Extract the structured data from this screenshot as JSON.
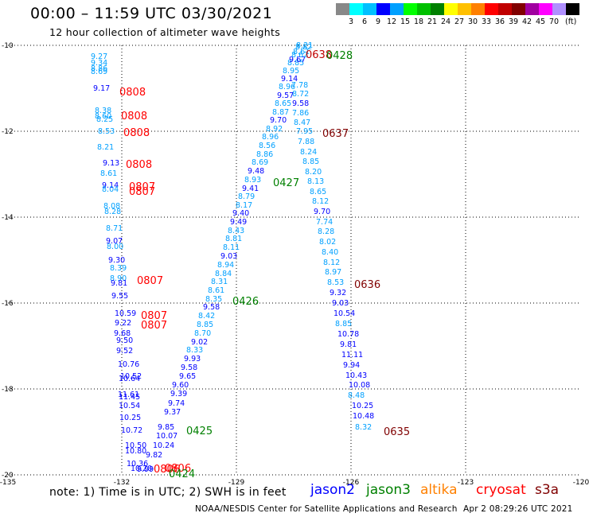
{
  "header": {
    "title": "00:00 – 11:59 UTC 03/30/2021",
    "subtitle": "12 hour collection of altimeter wave heights"
  },
  "colorbar": {
    "unit": "(ft)",
    "colors": [
      "#888888",
      "#00ffff",
      "#00c0ff",
      "#0000ff",
      "#00a0ff",
      "#00ff00",
      "#00c000",
      "#008000",
      "#ffff00",
      "#ffc000",
      "#ff8000",
      "#ff0000",
      "#c00000",
      "#800000",
      "#a000a0",
      "#ff00ff",
      "#b090ff",
      "#000000"
    ],
    "ticks": [
      "3",
      "6",
      "9",
      "12",
      "15",
      "18",
      "21",
      "24",
      "27",
      "30",
      "33",
      "36",
      "39",
      "42",
      "45",
      "70"
    ]
  },
  "map": {
    "lat_labels": [
      "-10",
      "-12",
      "-14",
      "-16",
      "-18",
      "-20"
    ],
    "lon_labels": [
      "-135",
      "-132",
      "-129",
      "-126",
      "-123",
      "-120"
    ]
  },
  "observations": [
    {
      "t": "9.27",
      "c": "#00a0ff"
    },
    {
      "t": "9.34",
      "c": "#00a0ff"
    },
    {
      "t": "8.86",
      "c": "#00a0ff"
    },
    {
      "t": "8.69",
      "c": "#00a0ff"
    },
    {
      "t": "9.17",
      "c": "#0000ff"
    },
    {
      "t": "8.38",
      "c": "#00a0ff"
    },
    {
      "t": "8.60",
      "c": "#00a0ff"
    },
    {
      "t": "8.25",
      "c": "#00a0ff"
    },
    {
      "t": "8.53",
      "c": "#00a0ff"
    },
    {
      "t": "8.21",
      "c": "#00a0ff"
    },
    {
      "t": "9.13",
      "c": "#0000ff"
    },
    {
      "t": "8.61",
      "c": "#00a0ff"
    },
    {
      "t": "9.14",
      "c": "#0000ff"
    },
    {
      "t": "8.04",
      "c": "#00a0ff"
    },
    {
      "t": "8.08",
      "c": "#00a0ff"
    },
    {
      "t": "8.28",
      "c": "#00a0ff"
    },
    {
      "t": "8.71",
      "c": "#00a0ff"
    },
    {
      "t": "9.07",
      "c": "#0000ff"
    },
    {
      "t": "8.00",
      "c": "#00a0ff"
    },
    {
      "t": "9.30",
      "c": "#0000ff"
    },
    {
      "t": "8.39",
      "c": "#00a0ff"
    },
    {
      "t": "8.90",
      "c": "#00a0ff"
    },
    {
      "t": "9.81",
      "c": "#0000ff"
    },
    {
      "t": "9.55",
      "c": "#0000ff"
    },
    {
      "t": "10.59",
      "c": "#0000ff"
    },
    {
      "t": "9.22",
      "c": "#0000ff"
    },
    {
      "t": "9.68",
      "c": "#0000ff"
    },
    {
      "t": "9.50",
      "c": "#0000ff"
    },
    {
      "t": "9.52",
      "c": "#0000ff"
    },
    {
      "t": "10.76",
      "c": "#0000ff"
    },
    {
      "t": "10.52",
      "c": "#0000ff"
    },
    {
      "t": "10.64",
      "c": "#0000ff"
    },
    {
      "t": "11.61",
      "c": "#0000ff"
    },
    {
      "t": "11.45",
      "c": "#0000ff"
    },
    {
      "t": "10.54",
      "c": "#0000ff"
    },
    {
      "t": "10.25",
      "c": "#0000ff"
    },
    {
      "t": "10.72",
      "c": "#0000ff"
    },
    {
      "t": "10.50",
      "c": "#0000ff"
    },
    {
      "t": "10.80",
      "c": "#0000ff"
    },
    {
      "t": "10.36",
      "c": "#0000ff"
    },
    {
      "t": "10.20",
      "c": "#0000ff"
    },
    {
      "t": "9.99",
      "c": "#0000ff"
    },
    {
      "t": "9.82",
      "c": "#0000ff"
    },
    {
      "t": "10.24",
      "c": "#0000ff"
    },
    {
      "t": "10.07",
      "c": "#0000ff"
    },
    {
      "t": "9.85",
      "c": "#0000ff"
    },
    {
      "t": "9.37",
      "c": "#0000ff"
    },
    {
      "t": "9.74",
      "c": "#0000ff"
    },
    {
      "t": "9.39",
      "c": "#0000ff"
    },
    {
      "t": "9.60",
      "c": "#0000ff"
    },
    {
      "t": "9.65",
      "c": "#0000ff"
    },
    {
      "t": "9.58",
      "c": "#0000ff"
    },
    {
      "t": "9.93",
      "c": "#0000ff"
    },
    {
      "t": "8.33",
      "c": "#00a0ff"
    },
    {
      "t": "9.02",
      "c": "#0000ff"
    },
    {
      "t": "8.70",
      "c": "#00a0ff"
    },
    {
      "t": "8.85",
      "c": "#00a0ff"
    },
    {
      "t": "8.42",
      "c": "#00a0ff"
    },
    {
      "t": "9.58",
      "c": "#0000ff"
    },
    {
      "t": "8.35",
      "c": "#00a0ff"
    },
    {
      "t": "8.61",
      "c": "#00a0ff"
    },
    {
      "t": "8.31",
      "c": "#00a0ff"
    },
    {
      "t": "8.84",
      "c": "#00a0ff"
    },
    {
      "t": "8.94",
      "c": "#00a0ff"
    },
    {
      "t": "9.03",
      "c": "#0000ff"
    },
    {
      "t": "8.11",
      "c": "#00a0ff"
    },
    {
      "t": "8.81",
      "c": "#00a0ff"
    },
    {
      "t": "8.43",
      "c": "#00a0ff"
    },
    {
      "t": "9.49",
      "c": "#0000ff"
    },
    {
      "t": "9.40",
      "c": "#0000ff"
    },
    {
      "t": "8.17",
      "c": "#00a0ff"
    },
    {
      "t": "8.79",
      "c": "#00a0ff"
    },
    {
      "t": "9.41",
      "c": "#0000ff"
    },
    {
      "t": "8.93",
      "c": "#00a0ff"
    },
    {
      "t": "9.48",
      "c": "#0000ff"
    },
    {
      "t": "8.69",
      "c": "#00a0ff"
    },
    {
      "t": "8.86",
      "c": "#00a0ff"
    },
    {
      "t": "8.56",
      "c": "#00a0ff"
    },
    {
      "t": "8.96",
      "c": "#00a0ff"
    },
    {
      "t": "8.92",
      "c": "#00a0ff"
    },
    {
      "t": "9.70",
      "c": "#0000ff"
    },
    {
      "t": "8.87",
      "c": "#00a0ff"
    },
    {
      "t": "8.65",
      "c": "#00a0ff"
    },
    {
      "t": "9.57",
      "c": "#0000ff"
    },
    {
      "t": "8.96",
      "c": "#00a0ff"
    },
    {
      "t": "9.14",
      "c": "#0000ff"
    },
    {
      "t": "8.95",
      "c": "#00a0ff"
    },
    {
      "t": "8.85",
      "c": "#00a0ff"
    },
    {
      "t": "9.67",
      "c": "#0000ff"
    },
    {
      "t": "8.62",
      "c": "#00a0ff"
    },
    {
      "t": "8.61",
      "c": "#00a0ff"
    },
    {
      "t": "8.82",
      "c": "#00a0ff"
    },
    {
      "t": "8.21",
      "c": "#00a0ff"
    },
    {
      "t": "7.78",
      "c": "#00a0ff"
    },
    {
      "t": "8.72",
      "c": "#00a0ff"
    },
    {
      "t": "9.58",
      "c": "#0000ff"
    },
    {
      "t": "7.86",
      "c": "#00a0ff"
    },
    {
      "t": "8.47",
      "c": "#00a0ff"
    },
    {
      "t": "7.95",
      "c": "#00a0ff"
    },
    {
      "t": "7.88",
      "c": "#00a0ff"
    },
    {
      "t": "8.24",
      "c": "#00a0ff"
    },
    {
      "t": "8.85",
      "c": "#00a0ff"
    },
    {
      "t": "8.20",
      "c": "#00a0ff"
    },
    {
      "t": "8.13",
      "c": "#00a0ff"
    },
    {
      "t": "8.65",
      "c": "#00a0ff"
    },
    {
      "t": "8.12",
      "c": "#00a0ff"
    },
    {
      "t": "9.70",
      "c": "#0000ff"
    },
    {
      "t": "7.74",
      "c": "#00a0ff"
    },
    {
      "t": "8.28",
      "c": "#00a0ff"
    },
    {
      "t": "8.02",
      "c": "#00a0ff"
    },
    {
      "t": "8.40",
      "c": "#00a0ff"
    },
    {
      "t": "8.12",
      "c": "#00a0ff"
    },
    {
      "t": "8.97",
      "c": "#00a0ff"
    },
    {
      "t": "8.53",
      "c": "#00a0ff"
    },
    {
      "t": "9.32",
      "c": "#0000ff"
    },
    {
      "t": "9.03",
      "c": "#0000ff"
    },
    {
      "t": "10.54",
      "c": "#0000ff"
    },
    {
      "t": "8.85",
      "c": "#00a0ff"
    },
    {
      "t": "10.78",
      "c": "#0000ff"
    },
    {
      "t": "9.81",
      "c": "#0000ff"
    },
    {
      "t": "11.11",
      "c": "#0000ff"
    },
    {
      "t": "9.94",
      "c": "#0000ff"
    },
    {
      "t": "10.43",
      "c": "#0000ff"
    },
    {
      "t": "10.08",
      "c": "#0000ff"
    },
    {
      "t": "8.48",
      "c": "#00a0ff"
    },
    {
      "t": "10.25",
      "c": "#0000ff"
    },
    {
      "t": "10.48",
      "c": "#0000ff"
    },
    {
      "t": "8.32",
      "c": "#00a0ff"
    }
  ],
  "pass_times": [
    {
      "t": "0638",
      "c": "#c00000"
    },
    {
      "t": "0428",
      "c": "#008000"
    },
    {
      "t": "0808",
      "c": "#ff0000"
    },
    {
      "t": "0808",
      "c": "#ff0000"
    },
    {
      "t": "0808",
      "c": "#ff0000"
    },
    {
      "t": "0637",
      "c": "#800000"
    },
    {
      "t": "0808",
      "c": "#ff0000"
    },
    {
      "t": "0807",
      "c": "#ff0000"
    },
    {
      "t": "0807",
      "c": "#ff0000"
    },
    {
      "t": "0427",
      "c": "#008000"
    },
    {
      "t": "0807",
      "c": "#ff0000"
    },
    {
      "t": "0636",
      "c": "#800000"
    },
    {
      "t": "0426",
      "c": "#008000"
    },
    {
      "t": "0807",
      "c": "#ff0000"
    },
    {
      "t": "0807",
      "c": "#ff0000"
    },
    {
      "t": "0425",
      "c": "#008000"
    },
    {
      "t": "0635",
      "c": "#800000"
    },
    {
      "t": "0806",
      "c": "#ff0000"
    },
    {
      "t": "0806",
      "c": "#ff0000"
    },
    {
      "t": "0424",
      "c": "#008000"
    }
  ],
  "notes": {
    "note": "note:  1) Time is in UTC; 2) SWH is in feet"
  },
  "satellites": [
    {
      "name": "jason2",
      "color": "#0000ff"
    },
    {
      "name": "jason3",
      "color": "#008000"
    },
    {
      "name": "altika",
      "color": "#ff8000"
    },
    {
      "name": "cryosat",
      "color": "#ff0000"
    },
    {
      "name": "s3a",
      "color": "#800000"
    }
  ],
  "footer": {
    "credit": "NOAA/NESDIS Center for Satellite Applications and Research",
    "timestamp": "Apr  2 08:29:26 UTC 2021"
  }
}
